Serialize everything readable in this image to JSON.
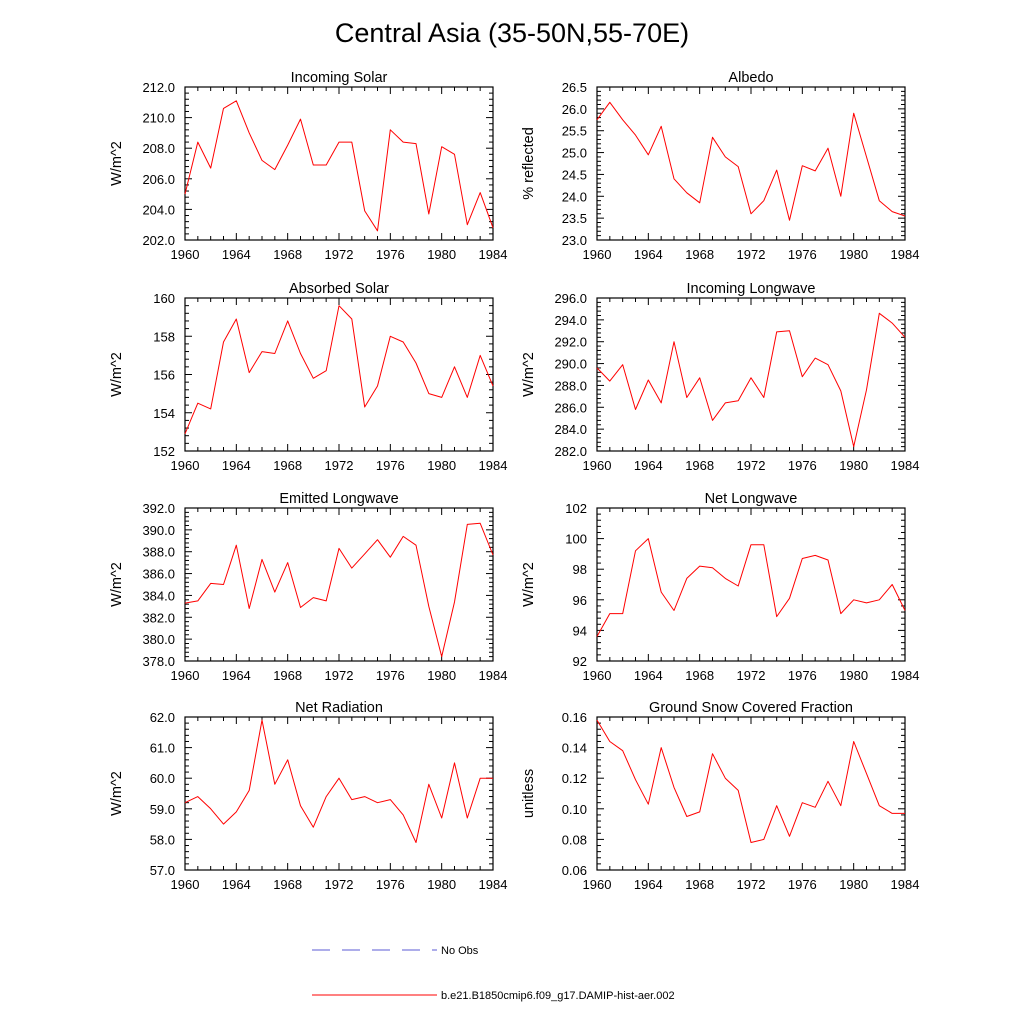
{
  "figure": {
    "title": "Central Asia (35-50N,55-70E)"
  },
  "legend": [
    {
      "label": "No Obs",
      "color": "#5b5bd6",
      "style": "dashed"
    },
    {
      "label": "b.e21.B1850cmip6.f09_g17.DAMIP-hist-aer.002",
      "color": "#ff0000",
      "style": "solid"
    }
  ],
  "chart_data": [
    {
      "type": "line",
      "title": "Incoming Solar",
      "ylabel": "W/m^2",
      "xlim": [
        1960,
        1984
      ],
      "ylim": [
        202.0,
        212.0
      ],
      "xticks": [
        "1960",
        "1964",
        "1968",
        "1972",
        "1976",
        "1980",
        "1984"
      ],
      "yticks": [
        "202.0",
        "204.0",
        "206.0",
        "208.0",
        "210.0",
        "212.0"
      ],
      "x": [
        1960,
        1961,
        1962,
        1963,
        1964,
        1965,
        1966,
        1967,
        1968,
        1969,
        1970,
        1971,
        1972,
        1973,
        1974,
        1975,
        1976,
        1977,
        1978,
        1979,
        1980,
        1981,
        1982,
        1983,
        1984
      ],
      "series": [
        {
          "values": [
            205.0,
            208.4,
            206.7,
            210.6,
            211.1,
            209.0,
            207.2,
            206.6,
            208.2,
            209.9,
            206.9,
            206.9,
            208.4,
            208.4,
            203.9,
            202.6,
            209.2,
            208.4,
            208.3,
            203.7,
            208.1,
            207.6,
            203.0,
            205.1,
            202.8
          ]
        }
      ]
    },
    {
      "type": "line",
      "title": "Albedo",
      "ylabel": "% reflected",
      "xlim": [
        1960,
        1984
      ],
      "ylim": [
        23.0,
        26.5
      ],
      "xticks": [
        "1960",
        "1964",
        "1968",
        "1972",
        "1976",
        "1980",
        "1984"
      ],
      "yticks": [
        "23.0",
        "23.5",
        "24.0",
        "24.5",
        "25.0",
        "25.5",
        "26.0",
        "26.5"
      ],
      "x": [
        1960,
        1961,
        1962,
        1963,
        1964,
        1965,
        1966,
        1967,
        1968,
        1969,
        1970,
        1971,
        1972,
        1973,
        1974,
        1975,
        1976,
        1977,
        1978,
        1979,
        1980,
        1981,
        1982,
        1983,
        1984
      ],
      "series": [
        {
          "values": [
            25.75,
            26.15,
            25.75,
            25.4,
            24.95,
            25.6,
            24.4,
            24.08,
            23.85,
            25.35,
            24.9,
            24.68,
            23.6,
            23.9,
            24.6,
            23.45,
            24.7,
            24.58,
            25.1,
            24.0,
            25.9,
            24.9,
            23.9,
            23.65,
            23.55
          ]
        }
      ]
    },
    {
      "type": "line",
      "title": "Absorbed Solar",
      "ylabel": "W/m^2",
      "xlim": [
        1960,
        1984
      ],
      "ylim": [
        152,
        160
      ],
      "xticks": [
        "1960",
        "1964",
        "1968",
        "1972",
        "1976",
        "1980",
        "1984"
      ],
      "yticks": [
        "152",
        "154",
        "156",
        "158",
        "160"
      ],
      "x": [
        1960,
        1961,
        1962,
        1963,
        1964,
        1965,
        1966,
        1967,
        1968,
        1969,
        1970,
        1971,
        1972,
        1973,
        1974,
        1975,
        1976,
        1977,
        1978,
        1979,
        1980,
        1981,
        1982,
        1983,
        1984
      ],
      "series": [
        {
          "values": [
            152.9,
            154.5,
            154.2,
            157.7,
            158.9,
            156.1,
            157.2,
            157.1,
            158.8,
            157.1,
            155.8,
            156.2,
            159.6,
            158.9,
            154.3,
            155.4,
            158.0,
            157.7,
            156.6,
            155.0,
            154.8,
            156.4,
            154.8,
            157.0,
            155.4
          ]
        }
      ]
    },
    {
      "type": "line",
      "title": "Incoming Longwave",
      "ylabel": "W/m^2",
      "xlim": [
        1960,
        1984
      ],
      "ylim": [
        282.0,
        296.0
      ],
      "xticks": [
        "1960",
        "1964",
        "1968",
        "1972",
        "1976",
        "1980",
        "1984"
      ],
      "yticks": [
        "282.0",
        "284.0",
        "286.0",
        "288.0",
        "290.0",
        "292.0",
        "294.0",
        "296.0"
      ],
      "x": [
        1960,
        1961,
        1962,
        1963,
        1964,
        1965,
        1966,
        1967,
        1968,
        1969,
        1970,
        1971,
        1972,
        1973,
        1974,
        1975,
        1976,
        1977,
        1978,
        1979,
        1980,
        1981,
        1982,
        1983,
        1984
      ],
      "series": [
        {
          "values": [
            289.6,
            288.4,
            289.9,
            285.8,
            288.5,
            286.4,
            292.0,
            286.9,
            288.7,
            284.8,
            286.4,
            286.6,
            288.7,
            286.9,
            292.9,
            293.0,
            288.8,
            290.5,
            289.9,
            287.5,
            282.4,
            287.6,
            294.6,
            293.7,
            292.4
          ]
        }
      ]
    },
    {
      "type": "line",
      "title": "Emitted Longwave",
      "ylabel": "W/m^2",
      "xlim": [
        1960,
        1984
      ],
      "ylim": [
        378.0,
        392.0
      ],
      "xticks": [
        "1960",
        "1964",
        "1968",
        "1972",
        "1976",
        "1980",
        "1984"
      ],
      "yticks": [
        "378.0",
        "380.0",
        "382.0",
        "384.0",
        "386.0",
        "388.0",
        "390.0",
        "392.0"
      ],
      "x": [
        1960,
        1961,
        1962,
        1963,
        1964,
        1965,
        1966,
        1967,
        1968,
        1969,
        1970,
        1971,
        1972,
        1973,
        1974,
        1975,
        1976,
        1977,
        1978,
        1979,
        1980,
        1981,
        1982,
        1983,
        1984
      ],
      "series": [
        {
          "values": [
            383.3,
            383.5,
            385.1,
            385.0,
            388.6,
            382.8,
            387.3,
            384.3,
            387.0,
            382.9,
            383.8,
            383.5,
            388.3,
            386.5,
            387.8,
            389.1,
            387.5,
            389.4,
            388.6,
            383.0,
            378.4,
            383.4,
            390.5,
            390.6,
            387.7
          ]
        }
      ]
    },
    {
      "type": "line",
      "title": "Net Longwave",
      "ylabel": "W/m^2",
      "xlim": [
        1960,
        1984
      ],
      "ylim": [
        92,
        102
      ],
      "xticks": [
        "1960",
        "1964",
        "1968",
        "1972",
        "1976",
        "1980",
        "1984"
      ],
      "yticks": [
        "92",
        "94",
        "96",
        "98",
        "100",
        "102"
      ],
      "x": [
        1960,
        1961,
        1962,
        1963,
        1964,
        1965,
        1966,
        1967,
        1968,
        1969,
        1970,
        1971,
        1972,
        1973,
        1974,
        1975,
        1976,
        1977,
        1978,
        1979,
        1980,
        1981,
        1982,
        1983,
        1984
      ],
      "series": [
        {
          "values": [
            93.6,
            95.1,
            95.1,
            99.2,
            100.0,
            96.5,
            95.3,
            97.4,
            98.2,
            98.1,
            97.4,
            96.9,
            99.6,
            99.6,
            94.9,
            96.1,
            98.7,
            98.9,
            98.6,
            95.1,
            96.0,
            95.8,
            96.0,
            97.0,
            95.3
          ]
        }
      ]
    },
    {
      "type": "line",
      "title": "Net Radiation",
      "ylabel": "W/m^2",
      "xlim": [
        1960,
        1984
      ],
      "ylim": [
        57.0,
        62.0
      ],
      "xticks": [
        "1960",
        "1964",
        "1968",
        "1972",
        "1976",
        "1980",
        "1984"
      ],
      "yticks": [
        "57.0",
        "58.0",
        "59.0",
        "60.0",
        "61.0",
        "62.0"
      ],
      "x": [
        1960,
        1961,
        1962,
        1963,
        1964,
        1965,
        1966,
        1967,
        1968,
        1969,
        1970,
        1971,
        1972,
        1973,
        1974,
        1975,
        1976,
        1977,
        1978,
        1979,
        1980,
        1981,
        1982,
        1983,
        1984
      ],
      "series": [
        {
          "values": [
            59.2,
            59.4,
            59.0,
            58.5,
            58.9,
            59.6,
            61.9,
            59.8,
            60.6,
            59.1,
            58.4,
            59.4,
            60.0,
            59.3,
            59.4,
            59.2,
            59.3,
            58.8,
            57.9,
            59.8,
            58.7,
            60.5,
            58.7,
            60.0,
            60.0
          ]
        }
      ]
    },
    {
      "type": "line",
      "title": "Ground Snow Covered Fraction",
      "ylabel": "unitless",
      "xlim": [
        1960,
        1984
      ],
      "ylim": [
        0.06,
        0.16
      ],
      "xticks": [
        "1960",
        "1964",
        "1968",
        "1972",
        "1976",
        "1980",
        "1984"
      ],
      "yticks": [
        "0.06",
        "0.08",
        "0.10",
        "0.12",
        "0.14",
        "0.16"
      ],
      "x": [
        1960,
        1961,
        1962,
        1963,
        1964,
        1965,
        1966,
        1967,
        1968,
        1969,
        1970,
        1971,
        1972,
        1973,
        1974,
        1975,
        1976,
        1977,
        1978,
        1979,
        1980,
        1981,
        1982,
        1983,
        1984
      ],
      "series": [
        {
          "values": [
            0.158,
            0.144,
            0.138,
            0.119,
            0.103,
            0.14,
            0.114,
            0.095,
            0.098,
            0.136,
            0.12,
            0.112,
            0.078,
            0.08,
            0.102,
            0.082,
            0.104,
            0.101,
            0.118,
            0.102,
            0.144,
            0.123,
            0.102,
            0.097,
            0.097
          ]
        }
      ]
    }
  ]
}
